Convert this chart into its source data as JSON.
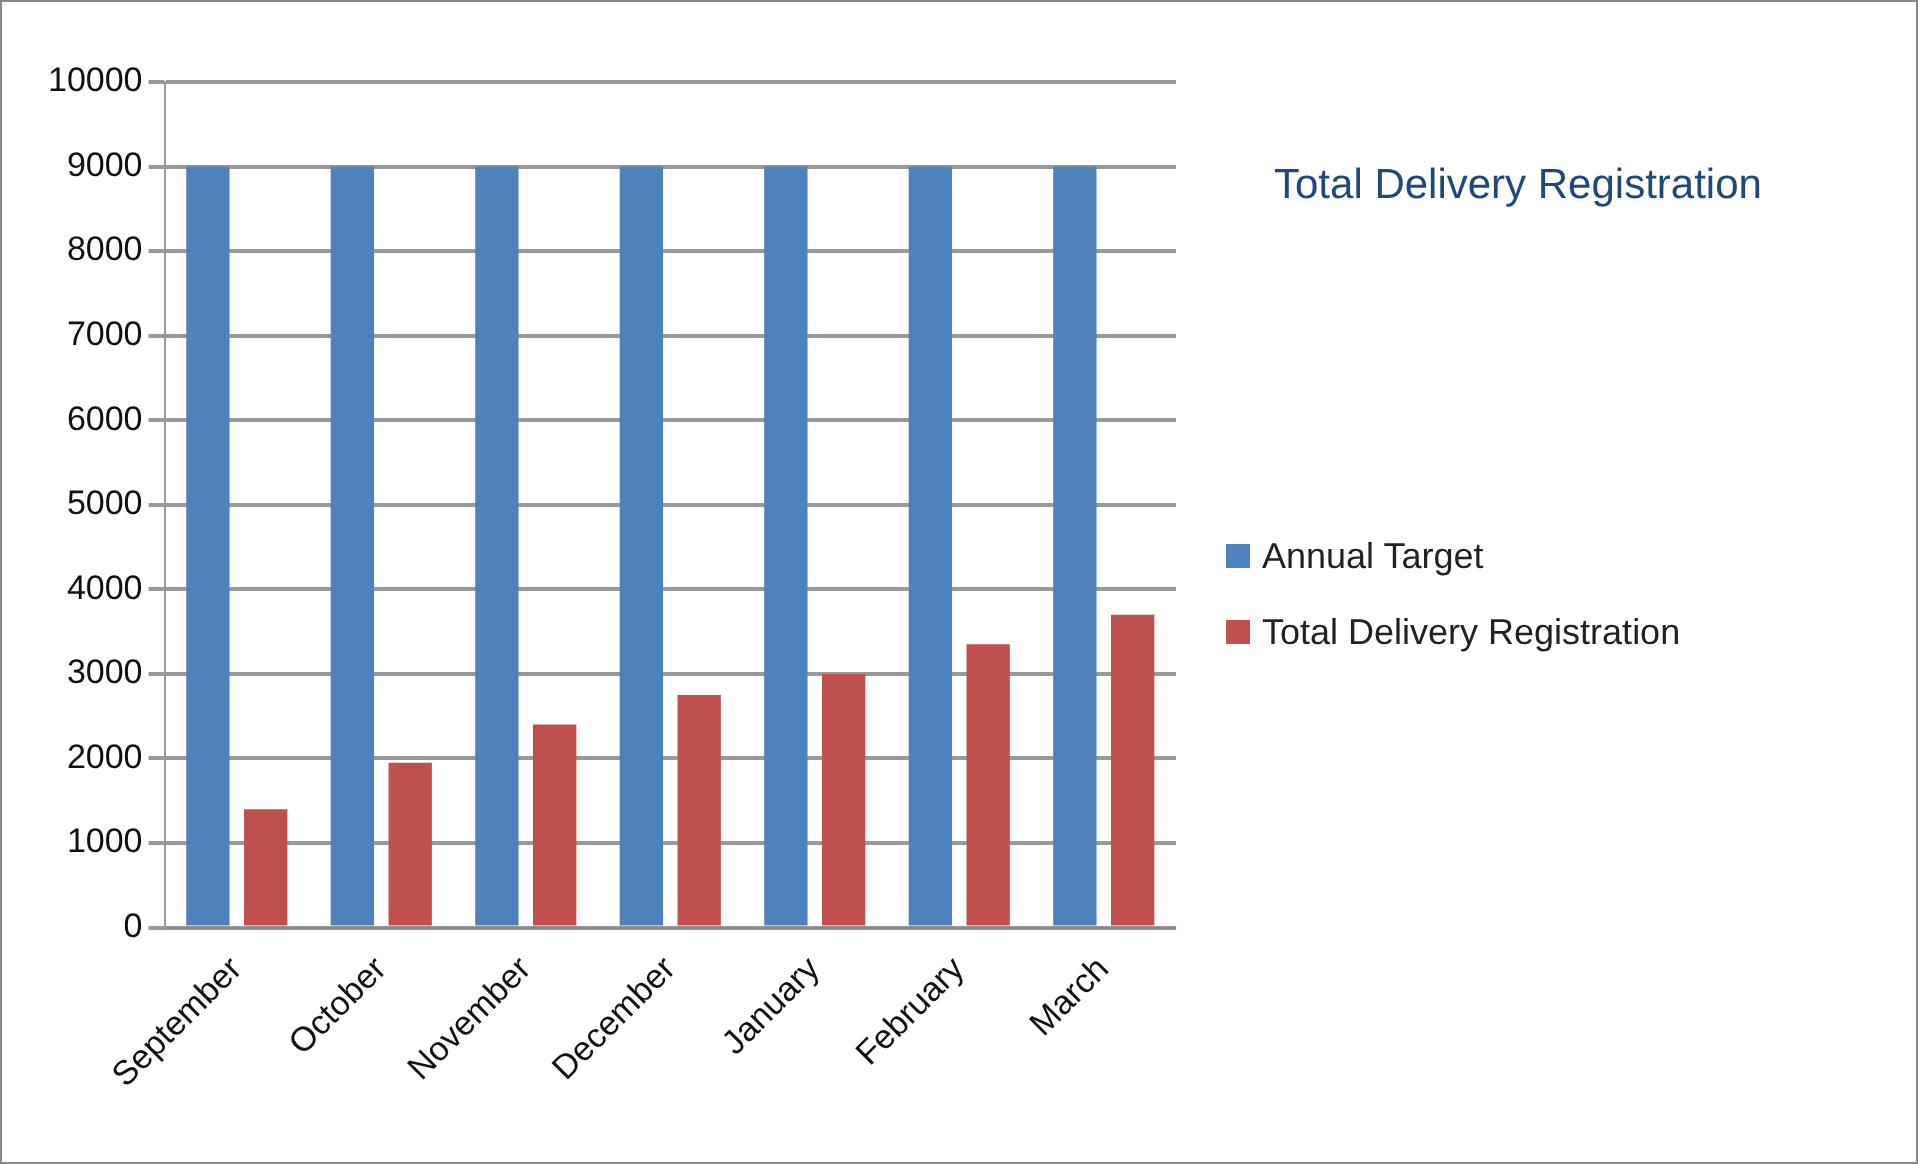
{
  "chart_data": {
    "type": "bar",
    "title": "Total Delivery Registration",
    "categories": [
      "September",
      "October",
      "November",
      "December",
      "January",
      "February",
      "March"
    ],
    "series": [
      {
        "name": "Annual Target",
        "color": "#4f81bd",
        "values": [
          9000,
          9000,
          9000,
          9000,
          9000,
          9000,
          9000
        ]
      },
      {
        "name": "Total Delivery Registration",
        "color": "#c0504d",
        "values": [
          1400,
          1950,
          2400,
          2750,
          3000,
          3350,
          3700
        ]
      }
    ],
    "ylim": [
      0,
      10000
    ],
    "yticks": [
      0,
      1000,
      2000,
      3000,
      4000,
      5000,
      6000,
      7000,
      8000,
      9000,
      10000
    ],
    "grid": "y",
    "legend": "right"
  }
}
